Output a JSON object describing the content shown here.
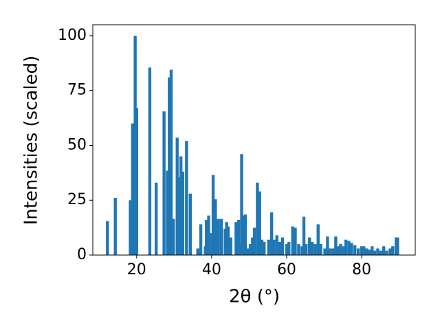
{
  "chart_data": {
    "type": "bar",
    "xlabel": "2θ (°)",
    "ylabel": "Intensities (scaled)",
    "color": "#1f77b4",
    "x": [
      12.2,
      14.3,
      18.3,
      18.9,
      19.6,
      20.0,
      23.5,
      25.2,
      27.3,
      28.2,
      28.7,
      29.2,
      29.8,
      30.8,
      31.3,
      31.8,
      32.3,
      33.3,
      34.3,
      36.3,
      37.1,
      38.3,
      38.6,
      39.2,
      40.0,
      40.4,
      41.0,
      41.8,
      42.6,
      43.6,
      44.0,
      44.4,
      45.1,
      46.5,
      47.2,
      47.6,
      48.0,
      48.6,
      49.0,
      49.6,
      50.3,
      50.9,
      51.4,
      52.2,
      52.8,
      53.4,
      54.0,
      55.2,
      56.0,
      56.6,
      57.4,
      58.2,
      58.9,
      60.0,
      60.6,
      61.6,
      62.3,
      63.2,
      64.1,
      64.6,
      65.2,
      66.1,
      66.8,
      67.6,
      68.4,
      69.1,
      70.2,
      70.9,
      71.6,
      72.4,
      73.1,
      73.8,
      74.4,
      75.2,
      75.8,
      76.6,
      77.3,
      78.2,
      79.1,
      80.0,
      80.6,
      81.3,
      82.0,
      82.8,
      83.5,
      84.3,
      85.1,
      85.9,
      86.7,
      87.6,
      88.3,
      89.2,
      89.6
    ],
    "values": [
      15.5,
      26,
      25,
      60,
      100,
      67,
      85.5,
      33,
      65.5,
      38.5,
      81,
      84.5,
      16.5,
      53.5,
      35.5,
      45,
      38,
      52,
      28,
      3,
      14,
      4,
      16,
      18,
      10,
      36.5,
      25.5,
      16.5,
      16.5,
      12,
      15,
      13,
      8,
      15,
      16,
      5,
      46,
      18,
      18.5,
      3,
      5,
      8,
      12.5,
      33,
      29,
      7,
      6,
      7,
      19.5,
      7,
      9,
      6,
      8,
      5,
      6,
      13,
      12.5,
      5,
      4,
      17.5,
      5,
      8,
      6,
      5,
      14,
      5,
      3,
      8.5,
      3,
      3,
      8.5,
      4,
      5,
      4,
      7,
      6.5,
      5.5,
      4.5,
      3,
      4,
      4,
      3,
      2.5,
      4,
      2,
      3,
      2,
      4,
      2,
      3,
      4,
      8,
      8
    ],
    "xlim": [
      8.3,
      94.3
    ],
    "ylim": [
      0,
      105
    ],
    "xticks": [
      20,
      40,
      60,
      80
    ],
    "yticks": [
      0,
      25,
      50,
      75,
      100
    ]
  }
}
